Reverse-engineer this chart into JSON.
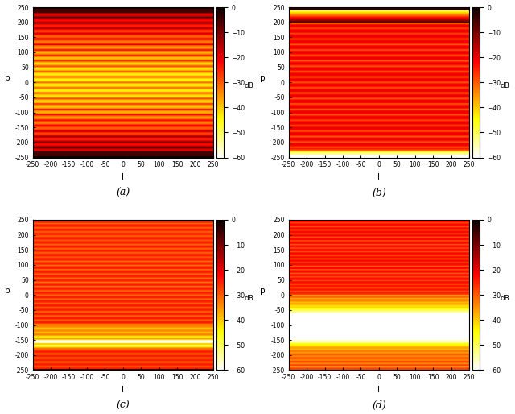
{
  "title_a": "(a)",
  "title_b": "(b)",
  "title_c": "(c)",
  "title_d": "(d)",
  "xlabel": "l",
  "ylabel": "p",
  "clabel": "dB",
  "xlim": [
    -250,
    250
  ],
  "ylim": [
    -250,
    250
  ],
  "vmin": -60,
  "vmax": 0,
  "xticks": [
    -250,
    -200,
    -150,
    -100,
    -50,
    0,
    50,
    100,
    150,
    200,
    250
  ],
  "yticks": [
    -250,
    -200,
    -150,
    -100,
    -50,
    0,
    50,
    100,
    150,
    200,
    250
  ],
  "band_period_a": 18,
  "band_period_c": 14,
  "band_period_d": 12
}
